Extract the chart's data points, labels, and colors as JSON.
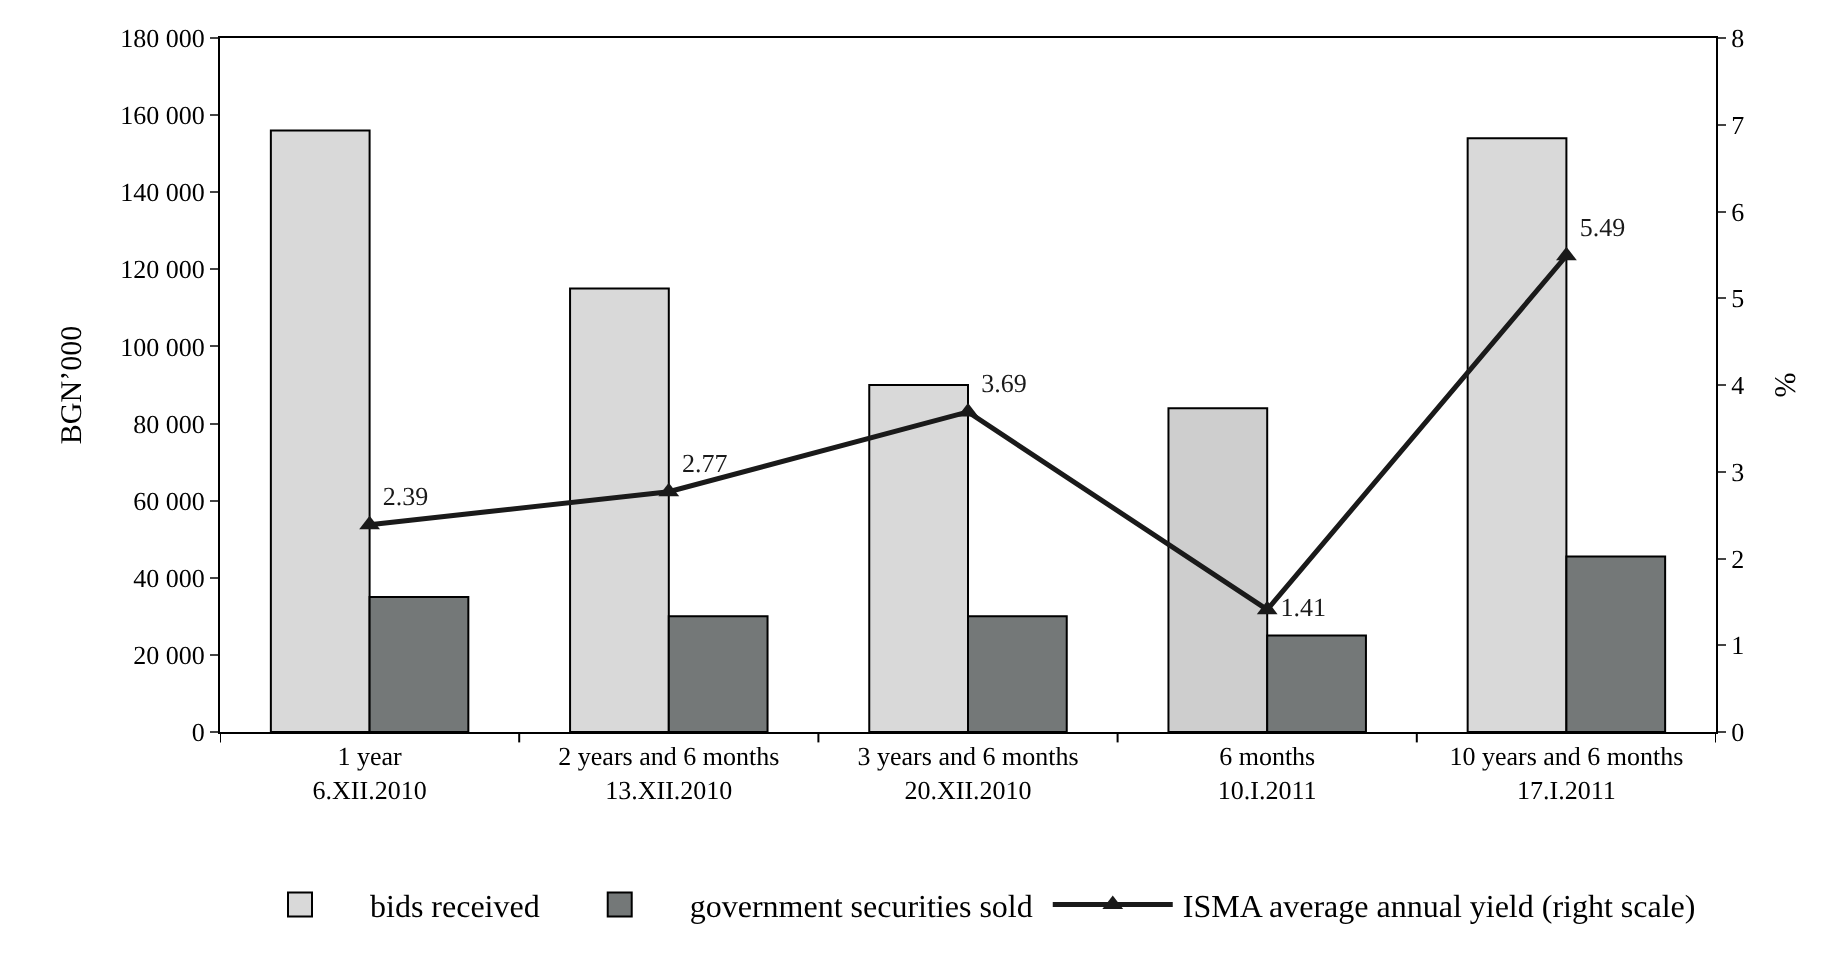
{
  "chart_data": {
    "type": "bar",
    "categories": [
      "1 year\n6.XII.2010",
      "2 years and 6 months\n13.XII.2010",
      "3 years and 6 months\n20.XII.2010",
      "6 months\n10.I.2011",
      "10 years and 6 months\n17.I.2011"
    ],
    "series": [
      {
        "name": "bids received",
        "color": "#d9d9d9",
        "colors": [
          "#d9d9d9",
          "#d9d9d9",
          "#d9d9d9",
          "#cecece",
          "#d9d9d9"
        ],
        "values": [
          156000,
          115000,
          90000,
          84000,
          154000
        ]
      },
      {
        "name": "government securities sold",
        "color": "#747878",
        "values": [
          35000,
          30000,
          30000,
          25000,
          45500
        ]
      },
      {
        "name": "ISMA average annual yield (right scale)",
        "type": "line",
        "axis": "y2",
        "color": "#1a1a1a",
        "marker": "triangle",
        "line_style": "solid",
        "values": [
          2.39,
          2.77,
          3.69,
          1.41,
          5.49
        ],
        "value_labels": [
          "2.39",
          "2.77",
          "3.69",
          "1.41",
          "5.49"
        ]
      }
    ],
    "ylabel": "BGN’000",
    "y2label": "%",
    "ylim": [
      0,
      180000
    ],
    "yticks": [
      {
        "value": 0,
        "label": "0"
      },
      {
        "value": 20000,
        "label": "20 000"
      },
      {
        "value": 40000,
        "label": "40 000"
      },
      {
        "value": 60000,
        "label": "60 000"
      },
      {
        "value": 80000,
        "label": "80 000"
      },
      {
        "value": 100000,
        "label": "100 000"
      },
      {
        "value": 120000,
        "label": "120 000"
      },
      {
        "value": 140000,
        "label": "140 000"
      },
      {
        "value": 160000,
        "label": "160 000"
      },
      {
        "value": 180000,
        "label": "180 000"
      }
    ],
    "y2lim": [
      0,
      8
    ],
    "y2ticks": [
      0,
      1,
      2,
      3,
      4,
      5,
      6,
      7,
      8
    ],
    "legend": "bottom"
  }
}
